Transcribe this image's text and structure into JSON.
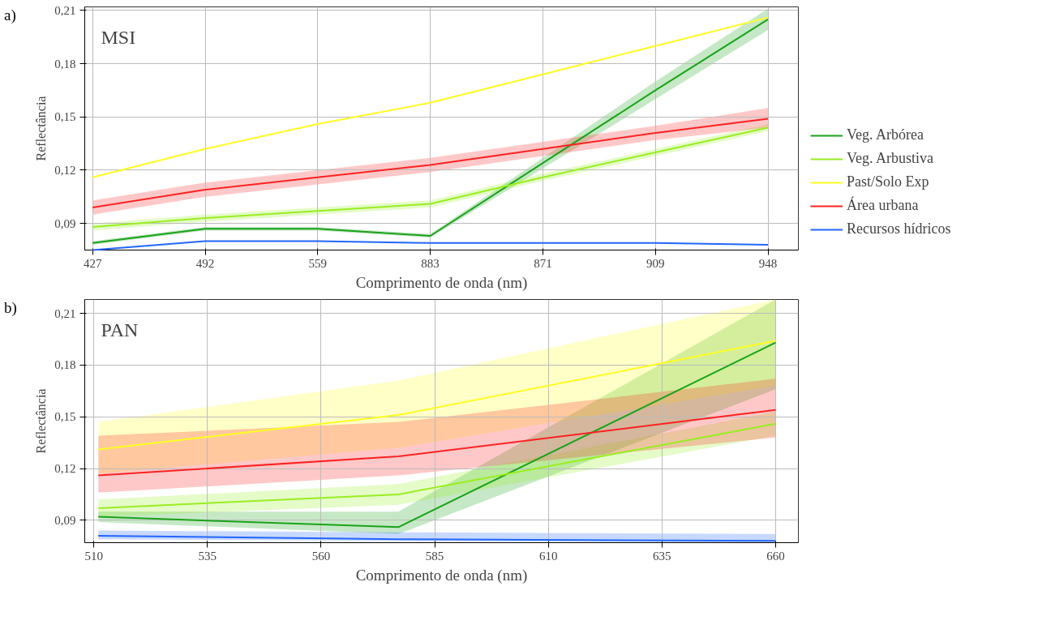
{
  "chart_data": [
    {
      "type": "line",
      "title": "MSI",
      "xlabel": "Comprimento de onda (nm)",
      "ylabel": "Reflectância",
      "annotations": [
        "a)"
      ],
      "grid": true,
      "legend": "right",
      "categories": [
        "427",
        "492",
        "559",
        "883",
        "871",
        "909",
        "948"
      ],
      "ylim": [
        0.075,
        0.212
      ],
      "yticks": [
        {
          "value": 0.09,
          "label": "0,09"
        },
        {
          "value": 0.12,
          "label": "0,12"
        },
        {
          "value": 0.15,
          "label": "0,15"
        },
        {
          "value": 0.18,
          "label": "0,18"
        },
        {
          "value": 0.21,
          "label": "0,21"
        }
      ],
      "series": [
        {
          "name": "Veg. Arbórea",
          "color": "#1aa31a",
          "values": [
            0.079,
            0.087,
            0.087,
            0.083,
            0.124,
            0.165,
            0.205
          ],
          "lower": [
            0.078,
            0.086,
            0.086,
            0.082,
            0.121,
            0.16,
            0.199
          ],
          "upper": [
            0.08,
            0.088,
            0.088,
            0.084,
            0.127,
            0.17,
            0.211
          ]
        },
        {
          "name": "Veg. Arbustiva",
          "color": "#99ee22",
          "values": [
            0.088,
            0.093,
            0.097,
            0.101,
            0.116,
            0.13,
            0.144
          ],
          "lower": [
            0.086,
            0.091,
            0.095,
            0.099,
            0.114,
            0.128,
            0.142
          ],
          "upper": [
            0.09,
            0.095,
            0.099,
            0.103,
            0.118,
            0.132,
            0.146
          ]
        },
        {
          "name": "Past/Solo Exp",
          "color": "#ffff22",
          "values": [
            0.116,
            0.132,
            0.146,
            0.158,
            0.174,
            0.19,
            0.206
          ]
        },
        {
          "name": "Área urbana",
          "color": "#ff2222",
          "values": [
            0.099,
            0.109,
            0.116,
            0.123,
            0.132,
            0.141,
            0.149
          ],
          "lower": [
            0.095,
            0.105,
            0.112,
            0.119,
            0.128,
            0.137,
            0.144
          ],
          "upper": [
            0.103,
            0.113,
            0.12,
            0.127,
            0.136,
            0.145,
            0.155
          ]
        },
        {
          "name": "Recursos hídricos",
          "color": "#2266ff",
          "values": [
            0.075,
            0.08,
            0.08,
            0.079,
            0.079,
            0.079,
            0.078
          ]
        }
      ]
    },
    {
      "type": "line",
      "title": "PAN",
      "xlabel": "Comprimento de onda (nm)",
      "ylabel": "Reflectância",
      "annotations": [
        "b)"
      ],
      "grid": true,
      "x": [
        511,
        577,
        660
      ],
      "xlim": [
        508,
        665
      ],
      "xticks": [
        510,
        535,
        560,
        585,
        610,
        635,
        660
      ],
      "ylim": [
        0.077,
        0.218
      ],
      "yticks": [
        {
          "value": 0.09,
          "label": "0,09"
        },
        {
          "value": 0.12,
          "label": "0,12"
        },
        {
          "value": 0.15,
          "label": "0,15"
        },
        {
          "value": 0.18,
          "label": "0,18"
        },
        {
          "value": 0.21,
          "label": "0,21"
        }
      ],
      "series": [
        {
          "color": "#1aa31a",
          "values": [
            0.092,
            0.086,
            0.193
          ],
          "lower": [
            0.089,
            0.082,
            0.166
          ],
          "upper": [
            0.095,
            0.095,
            0.218
          ]
        },
        {
          "color": "#99ee22",
          "values": [
            0.097,
            0.105,
            0.146
          ],
          "lower": [
            0.092,
            0.099,
            0.139
          ],
          "upper": [
            0.102,
            0.111,
            0.153
          ]
        },
        {
          "color": "#ffff22",
          "values": [
            0.131,
            0.151,
            0.194
          ],
          "lower": [
            0.117,
            0.132,
            0.168
          ],
          "upper": [
            0.147,
            0.171,
            0.218
          ]
        },
        {
          "color": "#ff2222",
          "values": [
            0.116,
            0.127,
            0.154
          ],
          "lower": [
            0.106,
            0.116,
            0.138
          ],
          "upper": [
            0.139,
            0.147,
            0.172
          ]
        },
        {
          "color": "#2266ff",
          "values": [
            0.081,
            0.079,
            0.078
          ],
          "lower": [
            0.079,
            0.078,
            0.077
          ],
          "upper": [
            0.084,
            0.083,
            0.082
          ]
        }
      ]
    }
  ]
}
